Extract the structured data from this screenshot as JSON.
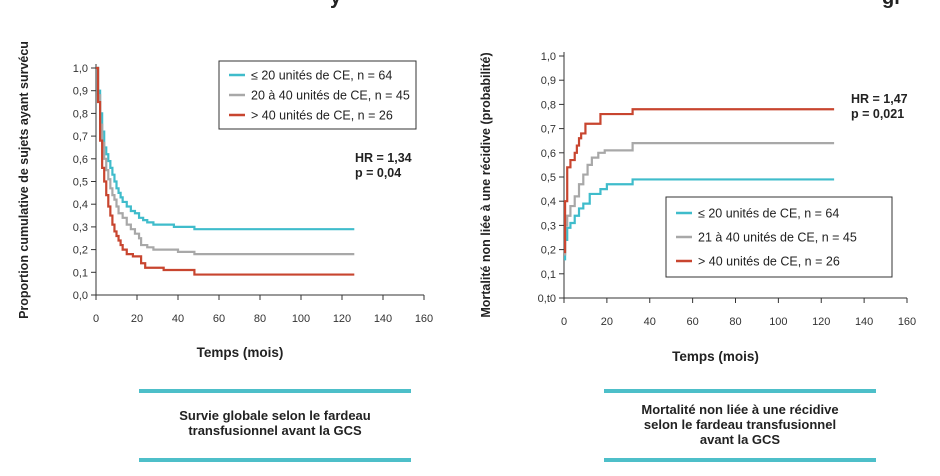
{
  "colors": {
    "cyan": "#3fbccb",
    "gray": "#a8a8a8",
    "red": "#c8452f",
    "teal_rule": "#4dbfc9"
  },
  "chart_data": [
    {
      "type": "line",
      "step": true,
      "header_fragment": "y",
      "ylabel": "Proportion cumulative de sujets ayant survécu",
      "xlabel": "Temps (mois)",
      "x_ticks": [
        "0",
        "20",
        "40",
        "60",
        "80",
        "100",
        "120",
        "140",
        "160"
      ],
      "y_ticks": [
        "0,0",
        "0,1",
        "0,2",
        "0,3",
        "0,4",
        "0,5",
        "0,6",
        "0,7",
        "0,8",
        "0,9",
        "1,0"
      ],
      "xlim": [
        0,
        160
      ],
      "ylim": [
        0,
        1
      ],
      "legend_position": "top-right",
      "annotation": [
        "HR = 1,34",
        "p = 0,04"
      ],
      "caption": [
        "Survie globale selon le fardeau",
        "transfusionnel avant la GCS"
      ],
      "series": [
        {
          "name": "≤ 20 unités de CE, n = 64",
          "color": "#3fbccb",
          "x": [
            0,
            1,
            2,
            3,
            4,
            5,
            6,
            7,
            8,
            9,
            10,
            11,
            12,
            13,
            15,
            17,
            19,
            21,
            23,
            25,
            28,
            31,
            38,
            45,
            48,
            126
          ],
          "y": [
            1.0,
            0.9,
            0.8,
            0.72,
            0.65,
            0.62,
            0.59,
            0.56,
            0.53,
            0.5,
            0.47,
            0.45,
            0.43,
            0.41,
            0.39,
            0.37,
            0.36,
            0.34,
            0.33,
            0.32,
            0.31,
            0.31,
            0.3,
            0.3,
            0.29,
            0.29
          ]
        },
        {
          "name": "20 à 40 unités de CE, n = 45",
          "color": "#a8a8a8",
          "x": [
            0,
            1,
            2,
            3,
            4,
            5,
            6,
            7,
            8,
            9,
            10,
            11,
            13,
            15,
            17,
            19,
            21,
            22,
            25,
            28,
            33,
            40,
            48,
            126
          ],
          "y": [
            1.0,
            0.88,
            0.75,
            0.67,
            0.6,
            0.55,
            0.51,
            0.47,
            0.44,
            0.42,
            0.39,
            0.36,
            0.34,
            0.31,
            0.29,
            0.27,
            0.25,
            0.22,
            0.21,
            0.2,
            0.2,
            0.19,
            0.18,
            0.18
          ]
        },
        {
          "name": "> 40 unités de CE, n = 26",
          "color": "#c8452f",
          "x": [
            0,
            1,
            2,
            3,
            4,
            5,
            6,
            7,
            8,
            9,
            10,
            11,
            12,
            13,
            15,
            18,
            22,
            24,
            29,
            33,
            40,
            48,
            126
          ],
          "y": [
            1.0,
            0.85,
            0.68,
            0.56,
            0.5,
            0.44,
            0.39,
            0.35,
            0.31,
            0.28,
            0.26,
            0.24,
            0.22,
            0.2,
            0.18,
            0.17,
            0.14,
            0.12,
            0.12,
            0.11,
            0.11,
            0.09,
            0.09
          ]
        }
      ]
    },
    {
      "type": "line",
      "step": true,
      "header_fragment": "gr",
      "ylabel": "Mortalité non liée à une récidive (probabilité)",
      "xlabel": "Temps (mois)",
      "x_ticks": [
        "0",
        "20",
        "40",
        "60",
        "80",
        "100",
        "120",
        "140",
        "160"
      ],
      "y_ticks": [
        "0,t0",
        "0,1",
        "0,2",
        "0,3",
        "0,4",
        "0,5",
        "0,6",
        "0,7",
        "0,8",
        "0,9",
        "1,0"
      ],
      "xlim": [
        0,
        160
      ],
      "ylim": [
        0,
        1
      ],
      "legend_position": "bottom-right",
      "annotation": [
        "HR = 1,47",
        "p = 0,021"
      ],
      "caption": [
        "Mortalité non liée à une récidive",
        "selon le fardeau transfusionnel",
        "avant la GCS"
      ],
      "series": [
        {
          "name": "≤ 20 unités de CE, n = 64",
          "color": "#3fbccb",
          "x": [
            0,
            0.5,
            1.5,
            3,
            5,
            7,
            9,
            12,
            17,
            20,
            32,
            126
          ],
          "y": [
            0.16,
            0.24,
            0.29,
            0.31,
            0.34,
            0.37,
            0.39,
            0.43,
            0.45,
            0.47,
            0.49,
            0.49
          ]
        },
        {
          "name": "21 à 40 unités de CE, n = 45",
          "color": "#a8a8a8",
          "x": [
            0,
            0.5,
            1.5,
            3,
            5,
            7,
            9,
            11,
            13,
            16,
            19,
            32,
            126
          ],
          "y": [
            0.18,
            0.3,
            0.34,
            0.38,
            0.42,
            0.47,
            0.51,
            0.55,
            0.58,
            0.6,
            0.61,
            0.64,
            0.64
          ]
        },
        {
          "name": "> 40 unités de CE, n = 26",
          "color": "#c8452f",
          "x": [
            0,
            0.5,
            1.5,
            3,
            5,
            6,
            7,
            8,
            10,
            12,
            17,
            32,
            126
          ],
          "y": [
            0.19,
            0.4,
            0.54,
            0.57,
            0.6,
            0.63,
            0.66,
            0.68,
            0.72,
            0.72,
            0.76,
            0.78,
            0.78
          ]
        }
      ]
    }
  ]
}
